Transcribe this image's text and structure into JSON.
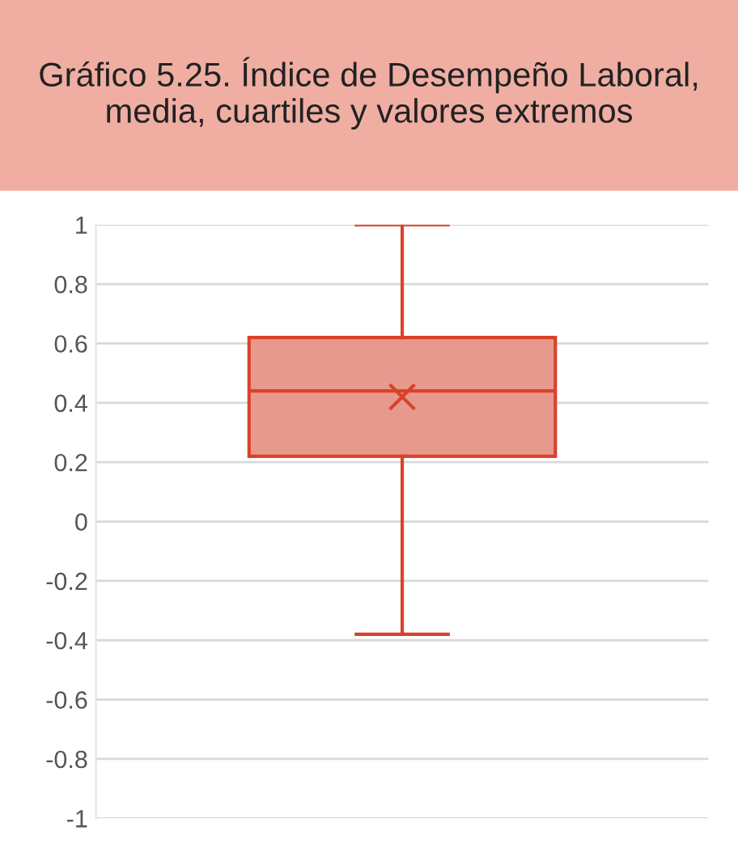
{
  "chart_data": {
    "type": "box",
    "title": "Gráfico 5.25. Índice de Desempeño Laboral, media, cuartiles y valores extremos",
    "categories": [
      null
    ],
    "boxes": [
      {
        "low": -0.38,
        "q1": 0.22,
        "median": 0.44,
        "q3": 0.62,
        "high": 1,
        "mean": 0.42
      }
    ],
    "color": "#e8998d",
    "ylim": [
      -1,
      1
    ],
    "yticks": [
      -1,
      -0.8,
      -0.6,
      -0.4,
      -0.2,
      0,
      0.2,
      0.4,
      0.6,
      0.8,
      1
    ],
    "grid": "y",
    "marker": "cross"
  }
}
